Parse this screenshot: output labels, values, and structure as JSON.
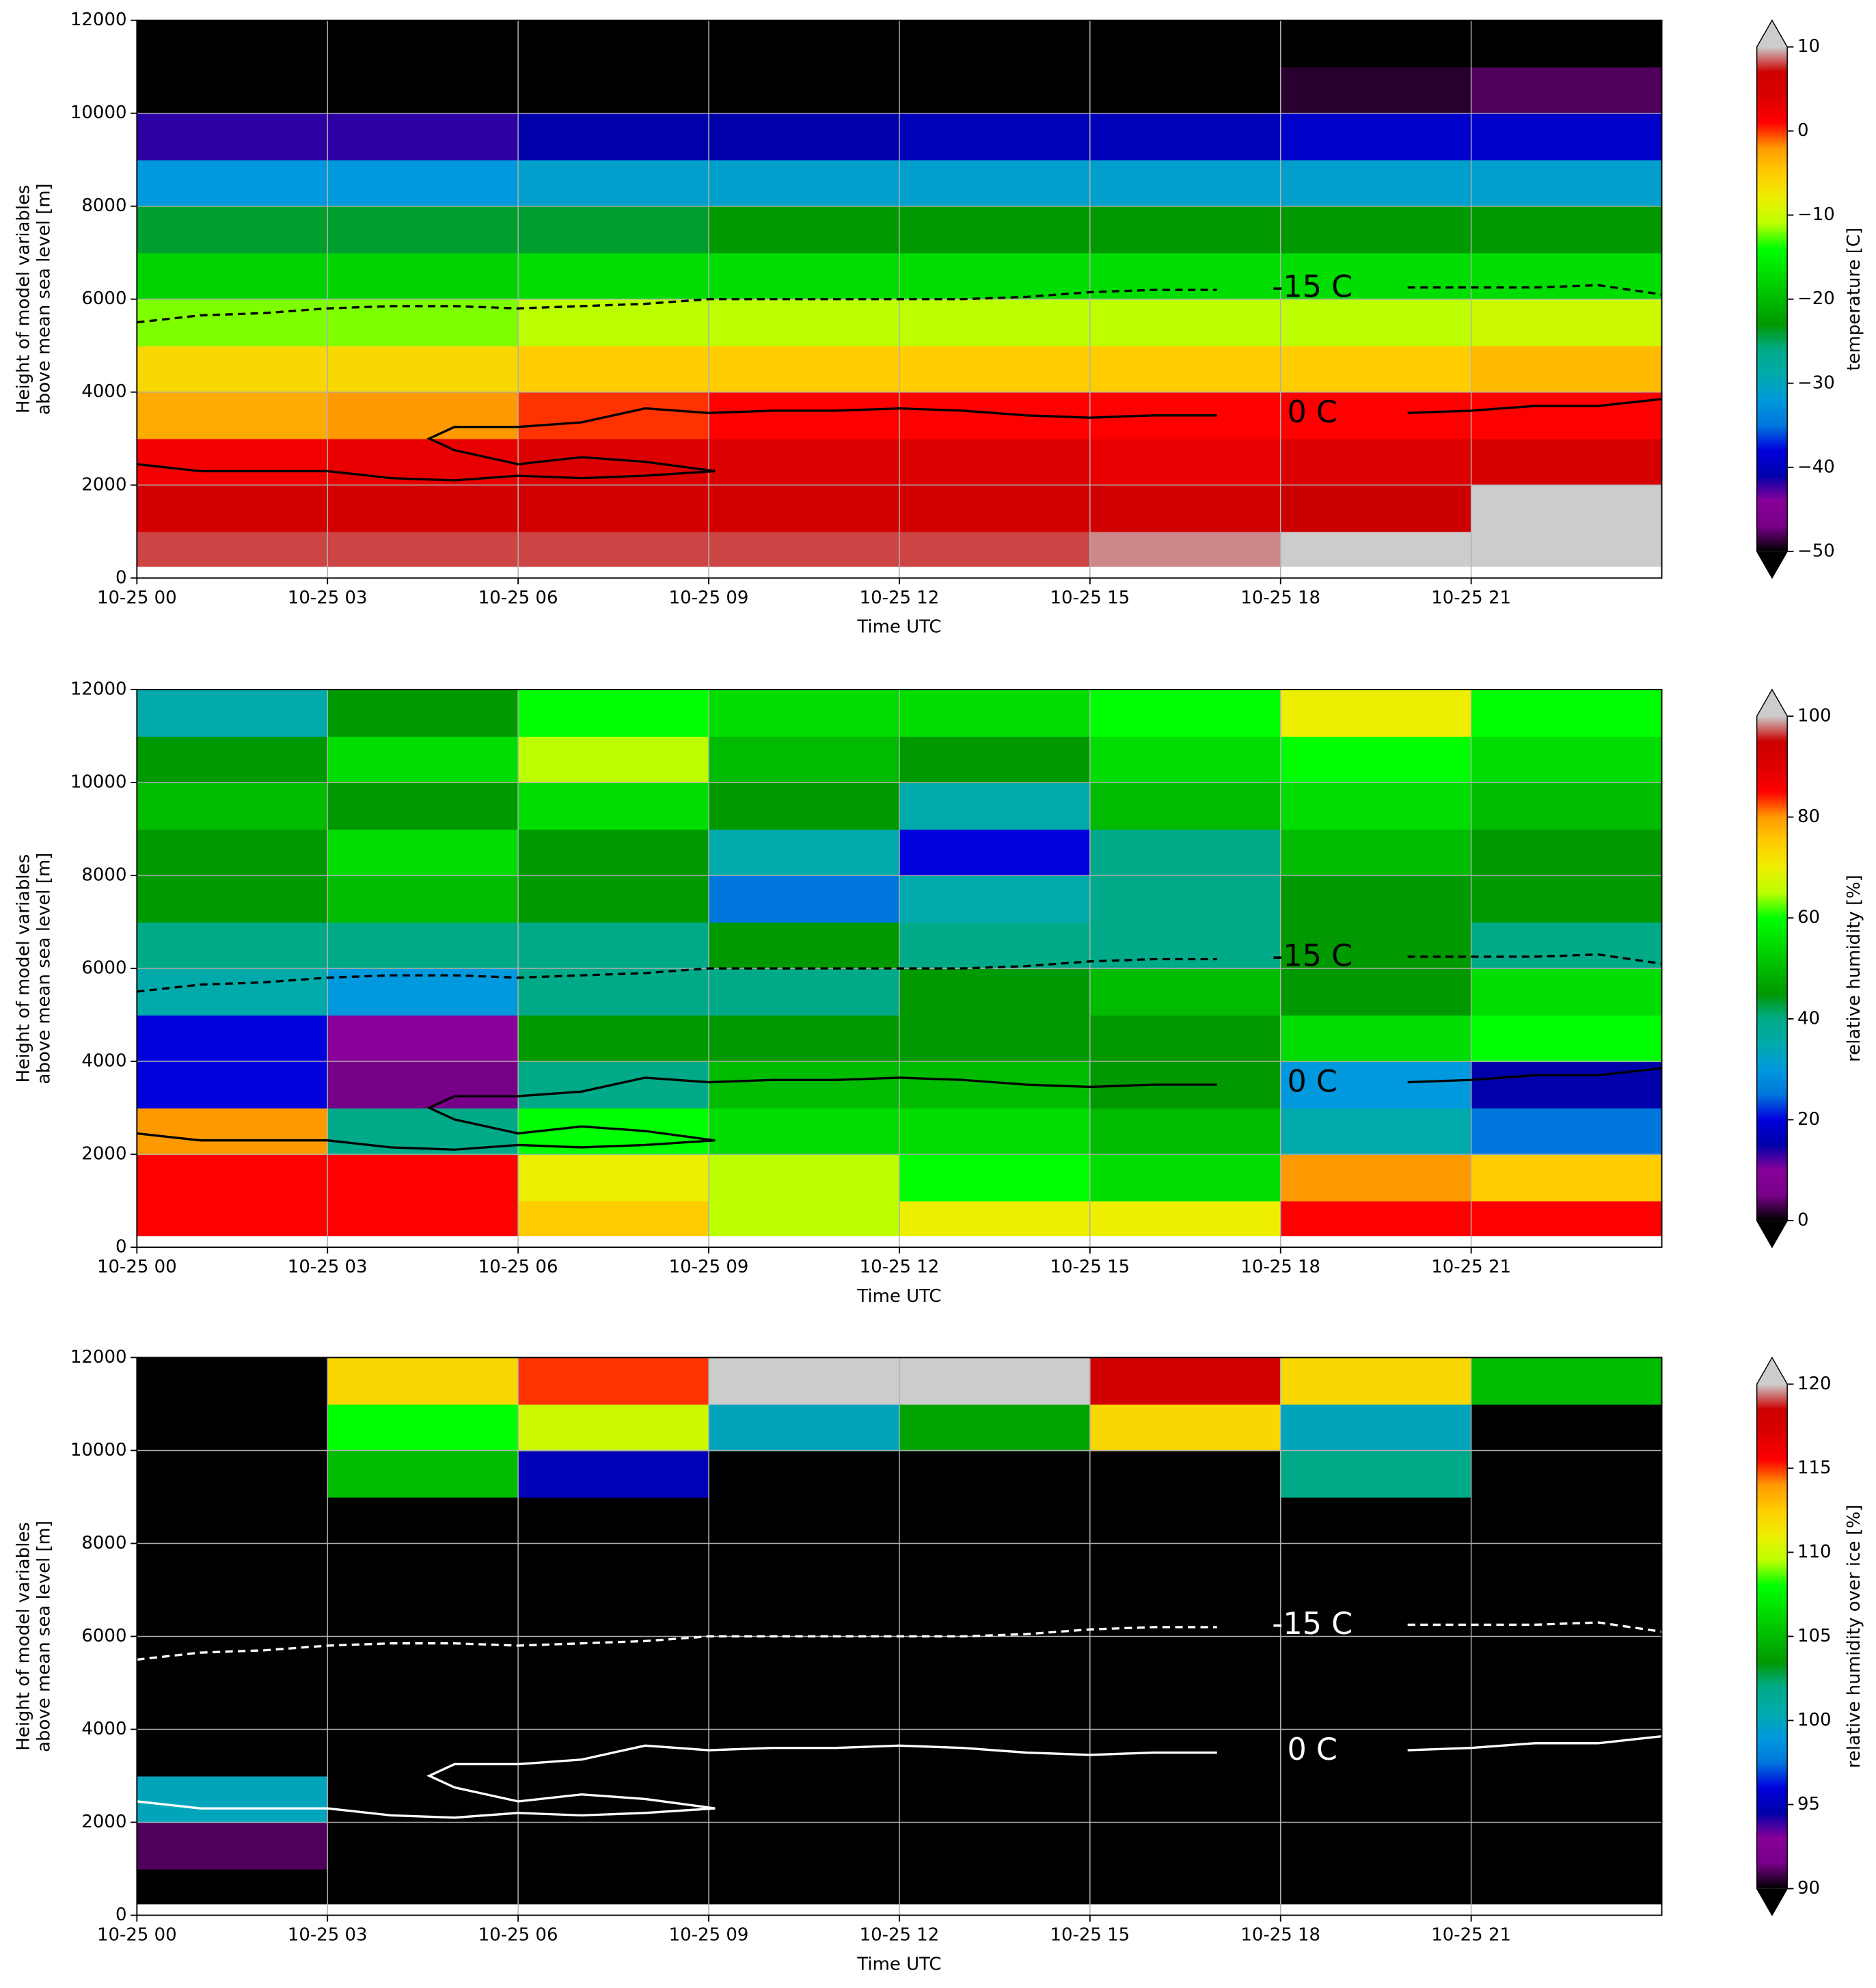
{
  "chart_data": [
    {
      "type": "heatmap",
      "xlabel": "Time UTC",
      "ylabel": [
        "Height of model variables",
        "above mean sea level [m]"
      ],
      "colorbar_label": "temperature [C]",
      "xlim": [
        0,
        24
      ],
      "ylim": [
        0,
        12000
      ],
      "xticks": [
        {
          "value": 0,
          "label": "10-25 00"
        },
        {
          "value": 3,
          "label": "10-25 03"
        },
        {
          "value": 6,
          "label": "10-25 06"
        },
        {
          "value": 9,
          "label": "10-25 09"
        },
        {
          "value": 12,
          "label": "10-25 12"
        },
        {
          "value": 15,
          "label": "10-25 15"
        },
        {
          "value": 18,
          "label": "10-25 18"
        },
        {
          "value": 21,
          "label": "10-25 21"
        }
      ],
      "yticks": [
        0,
        2000,
        4000,
        6000,
        8000,
        10000,
        12000
      ],
      "grid": true,
      "clim": [
        -50,
        10
      ],
      "cticks": [
        {
          "value": -50,
          "label": "−50"
        },
        {
          "value": -40,
          "label": "−40"
        },
        {
          "value": -30,
          "label": "−30"
        },
        {
          "value": -20,
          "label": "−20"
        },
        {
          "value": -10,
          "label": "−10"
        },
        0,
        10
      ],
      "colormap": [
        "#000000",
        "#770088",
        "#880099",
        "#0000aa",
        "#0000dd",
        "#0077dd",
        "#0099dd",
        "#00aaaa",
        "#00aa88",
        "#009900",
        "#00bb00",
        "#00dd00",
        "#00ff00",
        "#bbff00",
        "#eeee00",
        "#ffcc00",
        "#ff9900",
        "#ff0000",
        "#dd0000",
        "#cc0000",
        "#cccccc"
      ],
      "under_color": "#000000",
      "over_color": "#cccccc",
      "x_edges": [
        0,
        3,
        6,
        9,
        12,
        15,
        18,
        21,
        24
      ],
      "y_edges": [
        250,
        1000,
        2000,
        3000,
        4000,
        5000,
        6000,
        7000,
        8000,
        9000,
        10000,
        11000,
        12000
      ],
      "z": [
        [
          8,
          8,
          8,
          8,
          8,
          9,
          11,
          12
        ],
        [
          6,
          6,
          6,
          6,
          6,
          6,
          7,
          11
        ],
        [
          2,
          3,
          4,
          4,
          4,
          3,
          4,
          5
        ],
        [
          -3,
          -2,
          0,
          1,
          1,
          1,
          1,
          1
        ],
        [
          -6,
          -6,
          -5,
          -5,
          -5,
          -5,
          -5,
          -4
        ],
        [
          -12,
          -12,
          -11,
          -11,
          -11,
          -11,
          -11,
          -10
        ],
        [
          -18,
          -18,
          -17,
          -17,
          -17,
          -17,
          -17,
          -17
        ],
        [
          -24,
          -24,
          -24,
          -23,
          -23,
          -23,
          -23,
          -23
        ],
        [
          -32,
          -32,
          -31,
          -31,
          -31,
          -31,
          -31,
          -31
        ],
        [
          -42,
          -42,
          -41,
          -41,
          -40,
          -40,
          -39,
          -39
        ],
        [
          -52,
          -52,
          -51,
          -51,
          -51,
          -50,
          -49,
          -48
        ],
        [
          -55,
          -55,
          -55,
          -55,
          -55,
          -55,
          -55,
          -55
        ]
      ],
      "contours": [
        {
          "level": -15,
          "label": "-15 C",
          "color": "#000000",
          "linestyle": "dashed",
          "x": [
            0,
            1,
            2,
            3,
            4,
            5,
            6,
            7,
            8,
            9,
            10,
            11,
            12,
            13,
            14,
            15,
            16,
            17,
            18,
            19,
            20,
            21,
            22,
            23,
            24
          ],
          "y": [
            5500,
            5650,
            5700,
            5800,
            5850,
            5850,
            5800,
            5850,
            5900,
            6000,
            6000,
            6000,
            6000,
            6000,
            6050,
            6150,
            6200,
            6200,
            null,
            null,
            6250,
            6250,
            6250,
            6300,
            6100
          ]
        },
        {
          "level": 0,
          "label": "0 C",
          "color": "#000000",
          "linestyle": "solid",
          "x": [
            0,
            1,
            3,
            4,
            5,
            6,
            7,
            8,
            9.1,
            8,
            7,
            6,
            5,
            4.6,
            5,
            6,
            7,
            7.5,
            8,
            9,
            10,
            11,
            12,
            13,
            14,
            15,
            16,
            17,
            18,
            19,
            20,
            21,
            22,
            23,
            24
          ],
          "y": [
            2450,
            2300,
            2300,
            2150,
            2100,
            2200,
            2150,
            2200,
            2300,
            2500,
            2600,
            2450,
            2750,
            3000,
            3250,
            3250,
            3350,
            3500,
            3650,
            3550,
            3600,
            3600,
            3650,
            3600,
            3500,
            3450,
            3500,
            3500,
            null,
            null,
            3550,
            3600,
            3700,
            3700,
            3850
          ]
        }
      ]
    },
    {
      "type": "heatmap",
      "xlabel": "Time UTC",
      "ylabel": [
        "Height of model variables",
        "above mean sea level [m]"
      ],
      "colorbar_label": "relative humidity [%]",
      "xlim": [
        0,
        24
      ],
      "ylim": [
        0,
        12000
      ],
      "xticks": [
        {
          "value": 0,
          "label": "10-25 00"
        },
        {
          "value": 3,
          "label": "10-25 03"
        },
        {
          "value": 6,
          "label": "10-25 06"
        },
        {
          "value": 9,
          "label": "10-25 09"
        },
        {
          "value": 12,
          "label": "10-25 12"
        },
        {
          "value": 15,
          "label": "10-25 15"
        },
        {
          "value": 18,
          "label": "10-25 18"
        },
        {
          "value": 21,
          "label": "10-25 21"
        }
      ],
      "yticks": [
        0,
        2000,
        4000,
        6000,
        8000,
        10000,
        12000
      ],
      "grid": true,
      "clim": [
        0,
        100
      ],
      "cticks": [
        0,
        20,
        40,
        60,
        80,
        100
      ],
      "colormap": [
        "#000000",
        "#770088",
        "#880099",
        "#0000aa",
        "#0000dd",
        "#0077dd",
        "#0099dd",
        "#00aaaa",
        "#00aa88",
        "#009900",
        "#00bb00",
        "#00dd00",
        "#00ff00",
        "#bbff00",
        "#eeee00",
        "#ffcc00",
        "#ff9900",
        "#ff0000",
        "#dd0000",
        "#cc0000",
        "#cccccc"
      ],
      "under_color": "#000000",
      "over_color": "#cccccc",
      "x_edges": [
        0,
        3,
        6,
        9,
        12,
        15,
        18,
        21,
        24
      ],
      "y_edges": [
        250,
        1000,
        2000,
        3000,
        4000,
        5000,
        6000,
        7000,
        8000,
        9000,
        10000,
        11000,
        12000
      ],
      "z": [
        [
          85,
          85,
          75,
          65,
          70,
          70,
          85,
          85
        ],
        [
          85,
          85,
          70,
          65,
          60,
          55,
          80,
          75
        ],
        [
          80,
          40,
          60,
          55,
          55,
          50,
          35,
          25
        ],
        [
          20,
          5,
          40,
          50,
          50,
          45,
          30,
          15
        ],
        [
          20,
          10,
          45,
          45,
          45,
          45,
          55,
          60
        ],
        [
          35,
          30,
          40,
          40,
          45,
          50,
          45,
          55
        ],
        [
          40,
          40,
          40,
          45,
          40,
          40,
          45,
          40
        ],
        [
          45,
          50,
          45,
          25,
          35,
          40,
          45,
          45
        ],
        [
          45,
          55,
          45,
          35,
          20,
          40,
          50,
          45
        ],
        [
          50,
          45,
          55,
          45,
          35,
          50,
          55,
          50
        ],
        [
          45,
          55,
          65,
          50,
          45,
          55,
          60,
          55
        ],
        [
          35,
          45,
          60,
          55,
          55,
          60,
          70,
          60
        ]
      ],
      "contours": [
        {
          "level": -15,
          "label": "-15 C",
          "color": "#000000",
          "linestyle": "dashed",
          "x": [
            0,
            1,
            2,
            3,
            4,
            5,
            6,
            7,
            8,
            9,
            10,
            11,
            12,
            13,
            14,
            15,
            16,
            17,
            18,
            19,
            20,
            21,
            22,
            23,
            24
          ],
          "y": [
            5500,
            5650,
            5700,
            5800,
            5850,
            5850,
            5800,
            5850,
            5900,
            6000,
            6000,
            6000,
            6000,
            6000,
            6050,
            6150,
            6200,
            6200,
            null,
            null,
            6250,
            6250,
            6250,
            6300,
            6100
          ]
        },
        {
          "level": 0,
          "label": "0 C",
          "color": "#000000",
          "linestyle": "solid",
          "x": [
            0,
            1,
            3,
            4,
            5,
            6,
            7,
            8,
            9.1,
            8,
            7,
            6,
            5,
            4.6,
            5,
            6,
            7,
            7.5,
            8,
            9,
            10,
            11,
            12,
            13,
            14,
            15,
            16,
            17,
            18,
            19,
            20,
            21,
            22,
            23,
            24
          ],
          "y": [
            2450,
            2300,
            2300,
            2150,
            2100,
            2200,
            2150,
            2200,
            2300,
            2500,
            2600,
            2450,
            2750,
            3000,
            3250,
            3250,
            3350,
            3500,
            3650,
            3550,
            3600,
            3600,
            3650,
            3600,
            3500,
            3450,
            3500,
            3500,
            null,
            null,
            3550,
            3600,
            3700,
            3700,
            3850
          ]
        }
      ]
    },
    {
      "type": "heatmap",
      "xlabel": "Time UTC",
      "ylabel": [
        "Height of model variables",
        "above mean sea level [m]"
      ],
      "colorbar_label": "relative humidity over ice [%]",
      "xlim": [
        0,
        24
      ],
      "ylim": [
        0,
        12000
      ],
      "xticks": [
        {
          "value": 0,
          "label": "10-25 00"
        },
        {
          "value": 3,
          "label": "10-25 03"
        },
        {
          "value": 6,
          "label": "10-25 06"
        },
        {
          "value": 9,
          "label": "10-25 09"
        },
        {
          "value": 12,
          "label": "10-25 12"
        },
        {
          "value": 15,
          "label": "10-25 15"
        },
        {
          "value": 18,
          "label": "10-25 18"
        },
        {
          "value": 21,
          "label": "10-25 21"
        }
      ],
      "yticks": [
        0,
        2000,
        4000,
        6000,
        8000,
        10000,
        12000
      ],
      "grid": true,
      "clim": [
        90,
        120
      ],
      "cticks": [
        90,
        95,
        100,
        105,
        110,
        115,
        120
      ],
      "colormap": [
        "#000000",
        "#770088",
        "#880099",
        "#0000aa",
        "#0000dd",
        "#0077dd",
        "#0099dd",
        "#00aaaa",
        "#00aa88",
        "#009900",
        "#00bb00",
        "#00dd00",
        "#00ff00",
        "#bbff00",
        "#eeee00",
        "#ffcc00",
        "#ff9900",
        "#ff0000",
        "#dd0000",
        "#cc0000",
        "#cccccc"
      ],
      "under_color": "#000000",
      "over_color": "#cccccc",
      "x_edges": [
        0,
        3,
        6,
        9,
        12,
        15,
        18,
        21,
        24
      ],
      "y_edges": [
        250,
        1000,
        2000,
        3000,
        4000,
        5000,
        6000,
        7000,
        8000,
        9000,
        10000,
        11000,
        12000
      ],
      "z": [
        [
          80,
          80,
          80,
          80,
          80,
          80,
          80,
          80
        ],
        [
          91,
          80,
          80,
          80,
          80,
          80,
          80,
          80
        ],
        [
          100,
          80,
          80,
          80,
          80,
          80,
          80,
          80
        ],
        [
          80,
          80,
          80,
          80,
          80,
          80,
          80,
          80
        ],
        [
          80,
          80,
          80,
          80,
          80,
          80,
          80,
          80
        ],
        [
          80,
          80,
          80,
          80,
          80,
          80,
          80,
          80
        ],
        [
          80,
          80,
          80,
          80,
          80,
          80,
          80,
          80
        ],
        [
          80,
          80,
          80,
          80,
          80,
          80,
          80,
          80
        ],
        [
          80,
          80,
          80,
          80,
          80,
          80,
          80,
          80
        ],
        [
          80,
          105,
          95,
          80,
          80,
          80,
          102,
          80
        ],
        [
          80,
          108,
          110,
          100,
          104,
          112,
          100,
          80
        ],
        [
          80,
          112,
          115,
          121,
          121,
          118,
          112,
          105
        ]
      ],
      "contours": [
        {
          "level": -15,
          "label": "-15 C",
          "color": "#ffffff",
          "linestyle": "dashed",
          "x": [
            0,
            1,
            2,
            3,
            4,
            5,
            6,
            7,
            8,
            9,
            10,
            11,
            12,
            13,
            14,
            15,
            16,
            17,
            18,
            19,
            20,
            21,
            22,
            23,
            24
          ],
          "y": [
            5500,
            5650,
            5700,
            5800,
            5850,
            5850,
            5800,
            5850,
            5900,
            6000,
            6000,
            6000,
            6000,
            6000,
            6050,
            6150,
            6200,
            6200,
            null,
            null,
            6250,
            6250,
            6250,
            6300,
            6100
          ]
        },
        {
          "level": 0,
          "label": "0 C",
          "color": "#ffffff",
          "linestyle": "solid",
          "x": [
            0,
            1,
            3,
            4,
            5,
            6,
            7,
            8,
            9.1,
            8,
            7,
            6,
            5,
            4.6,
            5,
            6,
            7,
            7.5,
            8,
            9,
            10,
            11,
            12,
            13,
            14,
            15,
            16,
            17,
            18,
            19,
            20,
            21,
            22,
            23,
            24
          ],
          "y": [
            2450,
            2300,
            2300,
            2150,
            2100,
            2200,
            2150,
            2200,
            2300,
            2500,
            2600,
            2450,
            2750,
            3000,
            3250,
            3250,
            3350,
            3500,
            3650,
            3550,
            3600,
            3600,
            3650,
            3600,
            3500,
            3450,
            3500,
            3500,
            null,
            null,
            3550,
            3600,
            3700,
            3700,
            3850
          ]
        }
      ]
    }
  ]
}
